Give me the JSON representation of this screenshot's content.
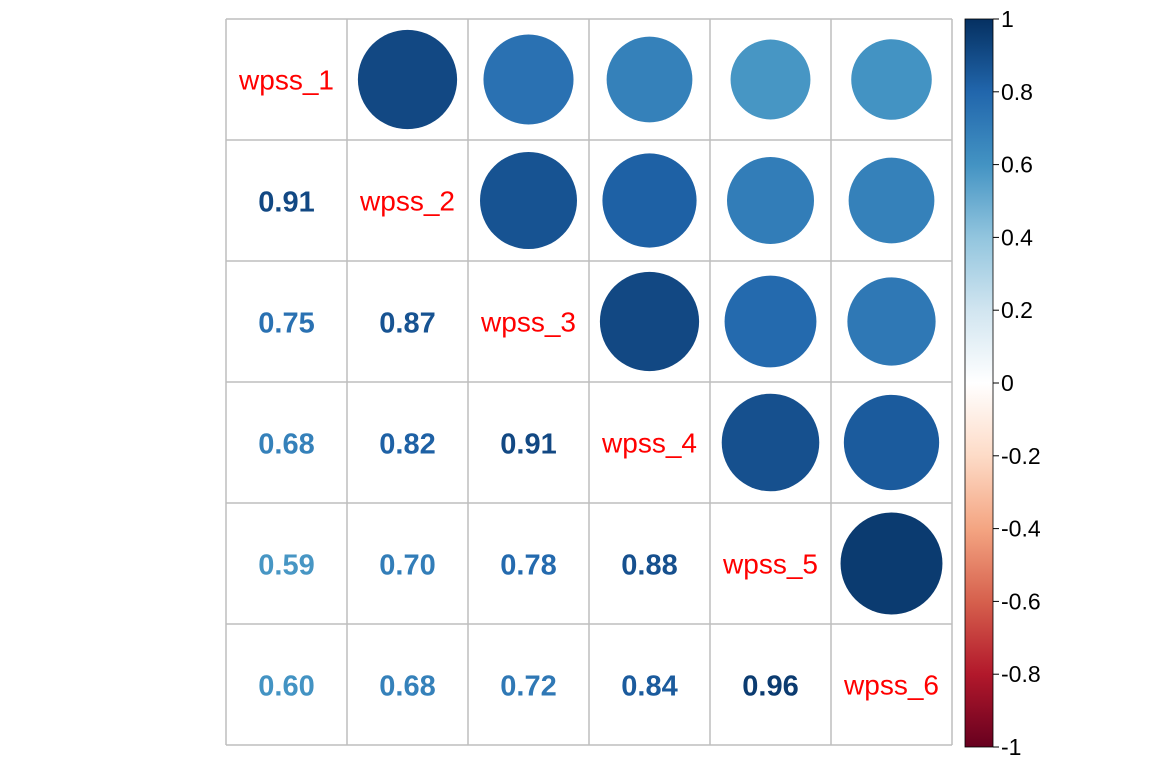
{
  "chart_data": {
    "type": "heatmap",
    "subtype": "correlation-matrix (corrplot mixed: upper circles, lower numbers)",
    "variables": [
      "wpss_1",
      "wpss_2",
      "wpss_3",
      "wpss_4",
      "wpss_5",
      "wpss_6"
    ],
    "matrix": [
      [
        1.0,
        0.91,
        0.75,
        0.68,
        0.59,
        0.6
      ],
      [
        0.91,
        1.0,
        0.87,
        0.82,
        0.7,
        0.68
      ],
      [
        0.75,
        0.87,
        1.0,
        0.91,
        0.78,
        0.72
      ],
      [
        0.68,
        0.82,
        0.91,
        1.0,
        0.88,
        0.84
      ],
      [
        0.59,
        0.7,
        0.78,
        0.88,
        1.0,
        0.96
      ],
      [
        0.6,
        0.68,
        0.72,
        0.84,
        0.96,
        1.0
      ]
    ],
    "upper_style": "circle",
    "lower_style": "number",
    "diagonal_label_color": "#FF0000",
    "colorbar": {
      "range": [
        -1,
        1
      ],
      "tick_labels": [
        "1",
        "0.8",
        "0.6",
        "0.4",
        "0.2",
        "0",
        "-0.2",
        "-0.4",
        "-0.6",
        "-0.8",
        "-1"
      ],
      "placement": "right",
      "palette": [
        "#67001F",
        "#B2182B",
        "#D6604D",
        "#F4A582",
        "#FDDBC7",
        "#FFFFFF",
        "#D1E5F0",
        "#92C5DE",
        "#4393C3",
        "#2166AC",
        "#053061"
      ]
    },
    "grid": true,
    "grid_color": "#BEBEBE"
  }
}
